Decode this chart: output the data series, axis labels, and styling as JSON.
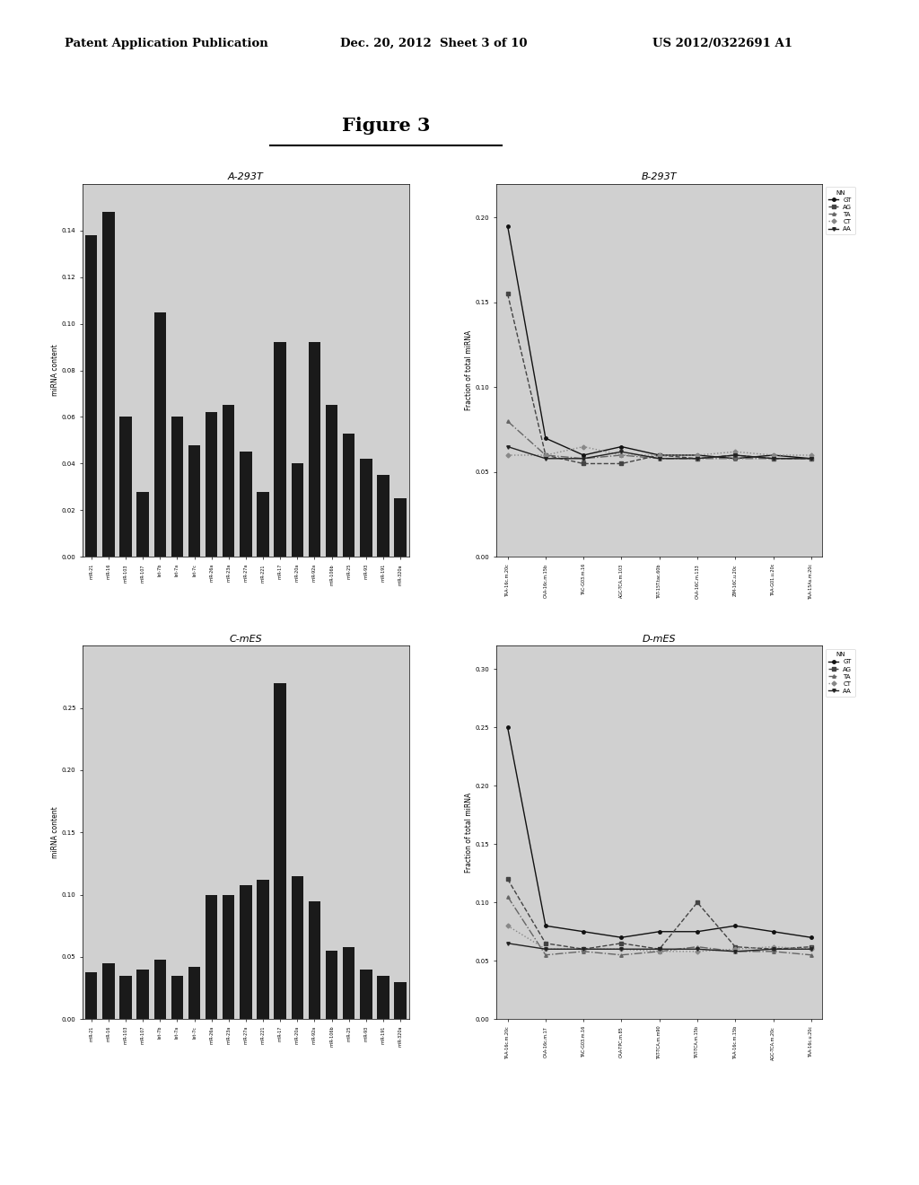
{
  "header_left": "Patent Application Publication",
  "header_middle": "Dec. 20, 2012  Sheet 3 of 10",
  "header_right": "US 2012/0322691 A1",
  "figure_title": "Figure 3",
  "panel_A_title": "A-293T",
  "panel_B_title": "B-293T",
  "panel_C_title": "C-mES",
  "panel_D_title": "D-mES",
  "panel_A_ylabel": "miRNA content",
  "panel_C_ylabel": "miRNA content",
  "panel_B_ylabel": "Fraction of total miRNA",
  "panel_D_ylabel": "Fraction of total miRNA",
  "panel_A_ylim": [
    0,
    0.16
  ],
  "panel_C_ylim": [
    0,
    0.3
  ],
  "panel_B_ylim": [
    0,
    0.22
  ],
  "panel_D_ylim": [
    0,
    0.32
  ],
  "panel_A_yticks": [
    0.0,
    0.02,
    0.04,
    0.06,
    0.08,
    0.1,
    0.12,
    0.14
  ],
  "panel_C_yticks": [
    0.0,
    0.05,
    0.1,
    0.15,
    0.2,
    0.25
  ],
  "panel_B_yticks": [
    0.0,
    0.05,
    0.1,
    0.15,
    0.2
  ],
  "panel_D_yticks": [
    0.0,
    0.05,
    0.1,
    0.15,
    0.2,
    0.25,
    0.3
  ],
  "panel_A_bars": [
    0.138,
    0.148,
    0.06,
    0.028,
    0.105,
    0.06,
    0.048,
    0.062,
    0.065,
    0.045,
    0.028,
    0.092,
    0.04,
    0.092,
    0.065,
    0.053,
    0.042,
    0.035,
    0.025
  ],
  "panel_C_bars": [
    0.038,
    0.045,
    0.035,
    0.04,
    0.048,
    0.035,
    0.042,
    0.1,
    0.1,
    0.108,
    0.112,
    0.27,
    0.115,
    0.095,
    0.055,
    0.058,
    0.04,
    0.035,
    0.03
  ],
  "panel_A_xlabels": [
    "miR-21",
    "miR-16",
    "miR-103",
    "miR-107",
    "let-7b",
    "let-7a",
    "let-7c",
    "miR-26a",
    "miR-23a",
    "miR-27a",
    "miR-221",
    "miR-17",
    "miR-20a",
    "miR-92a",
    "miR-106b",
    "miR-25",
    "miR-93",
    "miR-191",
    "miR-320a"
  ],
  "panel_C_xlabels": [
    "miR-21",
    "miR-16",
    "miR-103",
    "miR-107",
    "let-7b",
    "let-7a",
    "let-7c",
    "miR-26a",
    "miR-23a",
    "miR-27a",
    "miR-221",
    "miR-17",
    "miR-20a",
    "miR-92a",
    "miR-106b",
    "miR-25",
    "miR-93",
    "miR-191",
    "miR-320a"
  ],
  "panel_B_xlabels": [
    "TAA-16c.m.20c",
    "CAA-16c.m.15b",
    "TAC-G03.m.16",
    "AGC-TCA.m.103",
    "TAT-15T.tac.60b",
    "CAA-16C.m.133",
    "ZIM-16C.u.20c",
    "TAA-G01.u.20c",
    "TAA-15As.m.20c"
  ],
  "panel_D_xlabels": [
    "TAA-16c.m.20c",
    "CAA-16c.m.17",
    "TAC-G03.m.16",
    "CAA-TPC.m.85",
    "TAT-TCA.m.m90",
    "TAT-TCA.m.15b",
    "TAA-16c.m.15b",
    "AGC-TCA.m.20c",
    "TAA-16c.u.20c"
  ],
  "line_labels": [
    "GT",
    "AG",
    "TA",
    "CT",
    "AA"
  ],
  "panel_B_GT": [
    0.195,
    0.07,
    0.06,
    0.065,
    0.06,
    0.06,
    0.058,
    0.06,
    0.058
  ],
  "panel_B_AG": [
    0.155,
    0.06,
    0.055,
    0.055,
    0.06,
    0.058,
    0.06,
    0.058,
    0.058
  ],
  "panel_B_TA": [
    0.08,
    0.06,
    0.058,
    0.06,
    0.058,
    0.058,
    0.058,
    0.058,
    0.058
  ],
  "panel_B_CT": [
    0.06,
    0.06,
    0.065,
    0.06,
    0.06,
    0.06,
    0.062,
    0.06,
    0.06
  ],
  "panel_B_AA": [
    0.065,
    0.058,
    0.058,
    0.062,
    0.058,
    0.058,
    0.06,
    0.058,
    0.058
  ],
  "panel_D_GT": [
    0.25,
    0.08,
    0.075,
    0.07,
    0.075,
    0.075,
    0.08,
    0.075,
    0.07
  ],
  "panel_D_AG": [
    0.12,
    0.065,
    0.06,
    0.065,
    0.06,
    0.1,
    0.062,
    0.06,
    0.062
  ],
  "panel_D_TA": [
    0.105,
    0.055,
    0.058,
    0.055,
    0.058,
    0.062,
    0.058,
    0.058,
    0.055
  ],
  "panel_D_CT": [
    0.08,
    0.06,
    0.06,
    0.06,
    0.058,
    0.058,
    0.06,
    0.062,
    0.06
  ],
  "panel_D_AA": [
    0.065,
    0.06,
    0.06,
    0.06,
    0.06,
    0.06,
    0.058,
    0.06,
    0.06
  ],
  "bar_color": "#1a1a1a",
  "bg_color": "#d0d0d0",
  "page_bg": "#ffffff",
  "line_colors": [
    "#111111",
    "#444444",
    "#666666",
    "#888888",
    "#222222"
  ],
  "line_styles": [
    "-",
    "--",
    "-.",
    ":",
    "-"
  ]
}
